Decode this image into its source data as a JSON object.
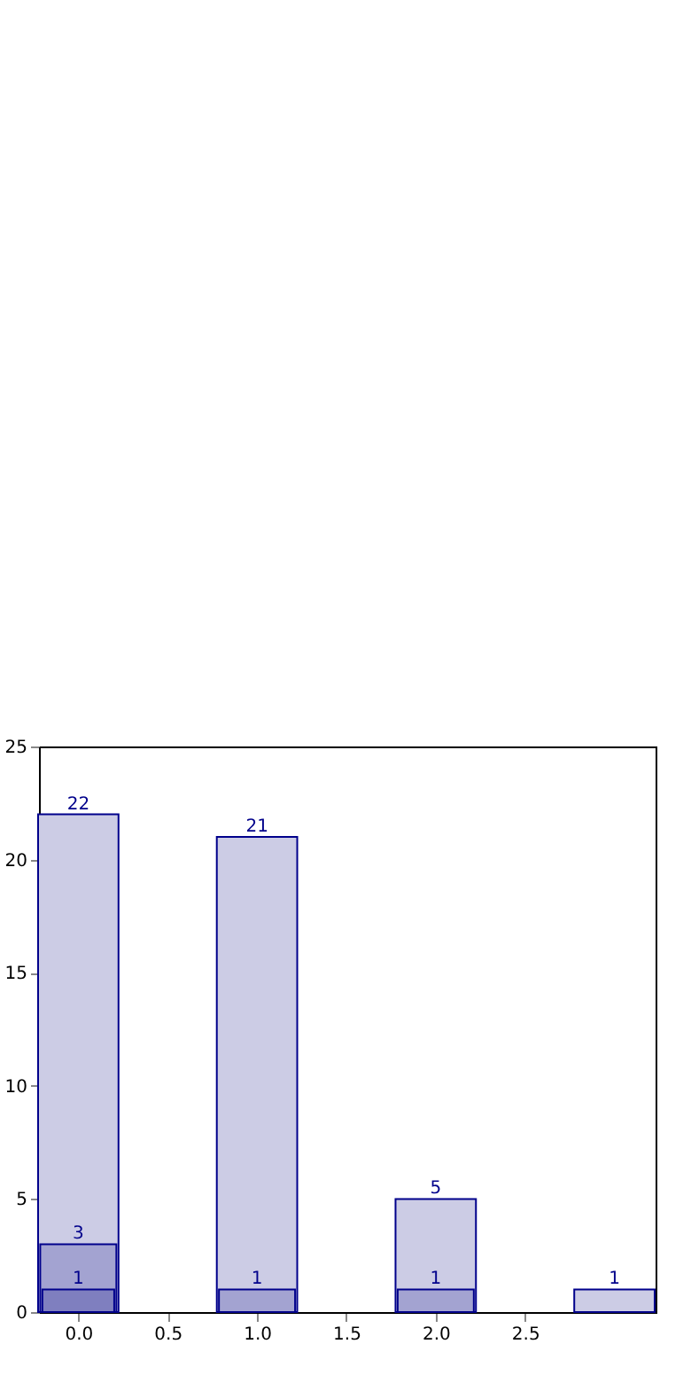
{
  "chart_data": {
    "type": "bar",
    "x": [
      0,
      1,
      2,
      3
    ],
    "series": [
      {
        "color": "#ccccE5",
        "values": [
          22,
          21,
          5,
          1
        ]
      },
      {
        "color": "#a3a3d1",
        "values": [
          3,
          1,
          1,
          null
        ]
      },
      {
        "color": "#7f7fbf",
        "values": [
          1,
          null,
          null,
          null
        ]
      }
    ],
    "xlim": [
      -0.22,
      3.23
    ],
    "xticks": [
      {
        "value": 0,
        "label": "0.0"
      },
      {
        "value": 0.5,
        "label": "0.5"
      },
      {
        "value": 1,
        "label": "1.0"
      },
      {
        "value": 1.5,
        "label": "1.5"
      },
      {
        "value": 2,
        "label": "2.0"
      },
      {
        "value": 2.5,
        "label": "2.5"
      }
    ],
    "ylim": [
      0,
      25
    ],
    "yticks": [
      0,
      5,
      10,
      15,
      20,
      25
    ],
    "data_labels": true,
    "grid": false,
    "legend": false
  }
}
